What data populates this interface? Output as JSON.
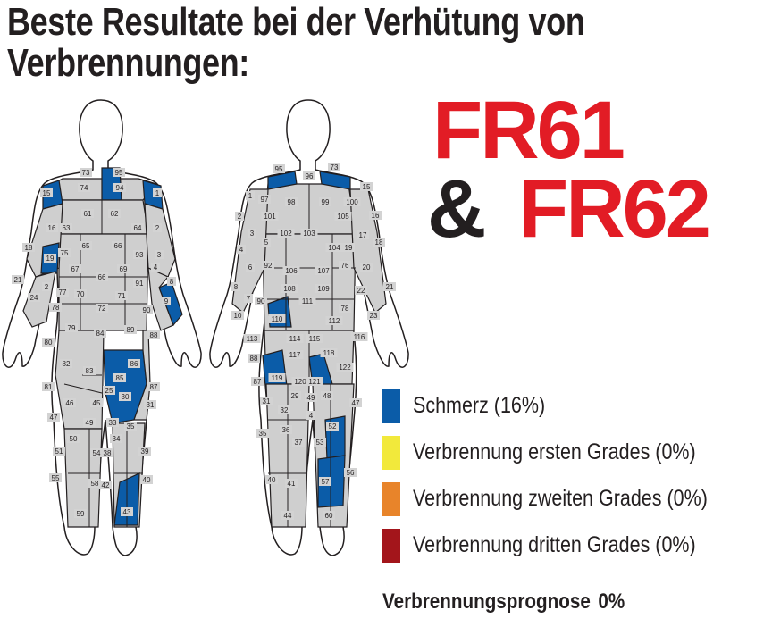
{
  "title": {
    "line1": "Beste Resultate bei der Verhütung von",
    "line2": "Verbrennungen:"
  },
  "product": {
    "line1": "FR61",
    "amp": "&",
    "line2": "FR62"
  },
  "colors": {
    "pain": "#0b5ca8",
    "first": "#f2e93b",
    "second": "#e8842a",
    "third": "#a3151b",
    "unaffected": "#cfcfcf",
    "outline": "#231f20",
    "red_text": "#e21c25"
  },
  "legend": [
    {
      "label": "Schmerz (16%)",
      "color": "#0b5ca8"
    },
    {
      "label": "Verbrennung ersten Grades (0%)",
      "color": "#f2e93b"
    },
    {
      "label": "Verbrennung zweiten Grades (0%)",
      "color": "#e8842a"
    },
    {
      "label": "Verbrennung dritten Grades (0%)",
      "color": "#a3151b"
    }
  ],
  "prognosis": {
    "label": "Verbrennungsprognose",
    "value": "0%"
  },
  "front_zones": {
    "pain": [
      "95",
      "15",
      "1",
      "19",
      "9",
      "86",
      "85",
      "30",
      "33",
      "43"
    ],
    "labels": [
      "73",
      "95",
      "74",
      "94",
      "15",
      "1",
      "61",
      "62",
      "16",
      "63",
      "64",
      "2",
      "65",
      "66",
      "18",
      "19",
      "75",
      "93",
      "3",
      "4",
      "67",
      "69",
      "21",
      "2",
      "66",
      "91",
      "8",
      "24",
      "77",
      "70",
      "71",
      "9",
      "78",
      "72",
      "90",
      "79",
      "84",
      "89",
      "88",
      "80",
      "82",
      "83",
      "86",
      "81",
      "85",
      "87",
      "25",
      "30",
      "31",
      "46",
      "45",
      "33",
      "47",
      "49",
      "35",
      "50",
      "34",
      "51",
      "54",
      "38",
      "39",
      "55",
      "58",
      "42",
      "40",
      "59",
      "43"
    ]
  },
  "back_zones": {
    "pain": [
      "95",
      "110",
      "119",
      "121",
      "52",
      "57"
    ],
    "labels": [
      "95",
      "96",
      "73",
      "15",
      "97",
      "98",
      "99",
      "100",
      "1",
      "101",
      "105",
      "16",
      "2",
      "102",
      "103",
      "104",
      "17",
      "3",
      "5",
      "19",
      "18",
      "4",
      "92",
      "106",
      "107",
      "76",
      "20",
      "6",
      "108",
      "109",
      "22",
      "21",
      "8",
      "90",
      "111",
      "112",
      "23",
      "10",
      "7",
      "110",
      "78",
      "113",
      "114",
      "115",
      "116",
      "117",
      "118",
      "88",
      "119",
      "120",
      "121",
      "122",
      "87",
      "29",
      "49",
      "48",
      "47",
      "31",
      "32",
      "4",
      "52",
      "36",
      "37",
      "53",
      "35",
      "40",
      "41",
      "57",
      "56",
      "44",
      "60"
    ]
  }
}
